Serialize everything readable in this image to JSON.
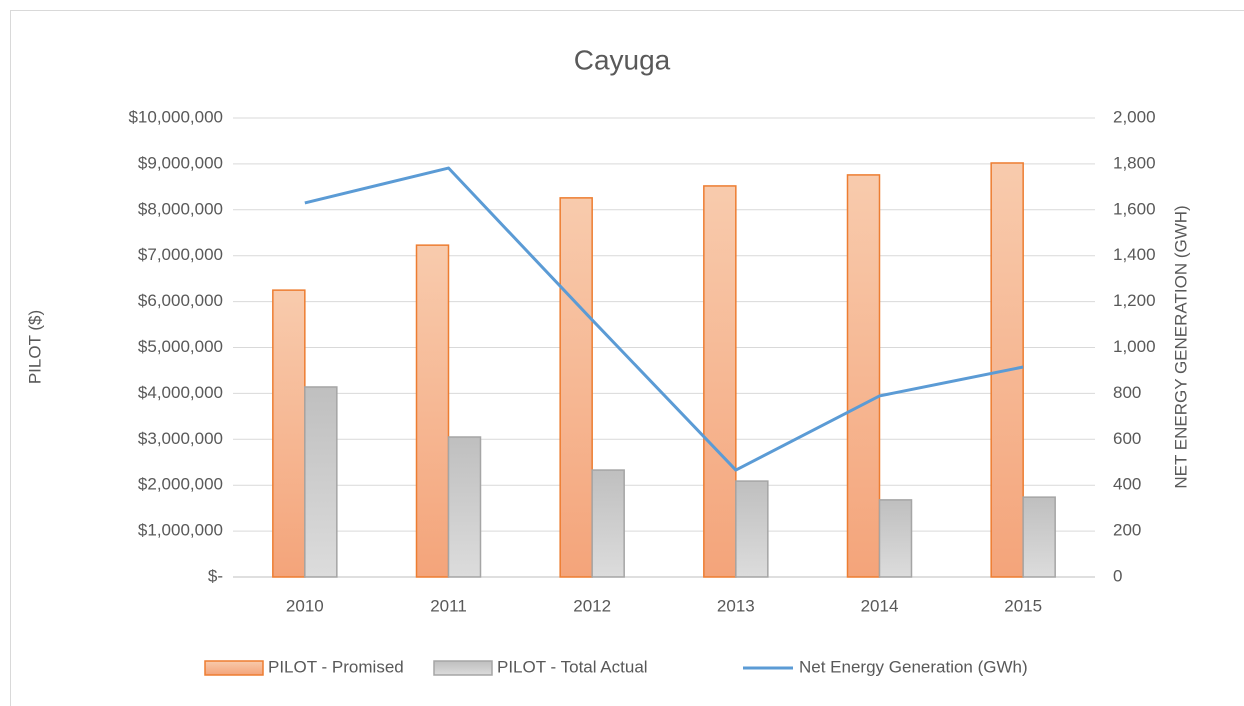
{
  "chart_data": {
    "type": "bar",
    "title": "Cayuga",
    "ylabel": "PILOT ($)",
    "y2label": "NET ENERGY GENERATION (GWH)",
    "categories": [
      "2010",
      "2011",
      "2012",
      "2013",
      "2014",
      "2015"
    ],
    "series": [
      {
        "name": "PILOT - Promised",
        "color": "#f4b183",
        "edge": "#ed7d31",
        "values": [
          6250000,
          7230000,
          8260000,
          8520000,
          8760000,
          9020000
        ]
      },
      {
        "name": "PILOT - Total Actual",
        "color": "#cfcfcf",
        "edge": "#a5a5a5",
        "values": [
          4140000,
          3050000,
          2330000,
          2090000,
          1680000,
          1740000
        ]
      },
      {
        "name": "Net Energy Generation (GWh)",
        "type": "line",
        "axis": "y2",
        "color": "#5b9bd5",
        "values": [
          1630,
          1782,
          1120,
          466,
          789,
          915
        ]
      }
    ],
    "ylim": [
      0,
      10000000
    ],
    "yticks": [
      {
        "value": 0,
        "label": "$-"
      },
      {
        "value": 1000000,
        "label": "$1,000,000"
      },
      {
        "value": 2000000,
        "label": "$2,000,000"
      },
      {
        "value": 3000000,
        "label": "$3,000,000"
      },
      {
        "value": 4000000,
        "label": "$4,000,000"
      },
      {
        "value": 5000000,
        "label": "$5,000,000"
      },
      {
        "value": 6000000,
        "label": "$6,000,000"
      },
      {
        "value": 7000000,
        "label": "$7,000,000"
      },
      {
        "value": 8000000,
        "label": "$8,000,000"
      },
      {
        "value": 9000000,
        "label": "$9,000,000"
      },
      {
        "value": 10000000,
        "label": "$10,000,000"
      }
    ],
    "y2lim": [
      0,
      2000
    ],
    "y2ticks": [
      0,
      200,
      400,
      600,
      800,
      {
        "value": 1000,
        "label": "1,000"
      },
      {
        "value": 1200,
        "label": "1,200"
      },
      {
        "value": 1400,
        "label": "1,400"
      },
      {
        "value": 1600,
        "label": "1,600"
      },
      {
        "value": 1800,
        "label": "1,800"
      },
      {
        "value": 2000,
        "label": "2,000"
      }
    ],
    "grid": true,
    "legend": "bottom"
  }
}
